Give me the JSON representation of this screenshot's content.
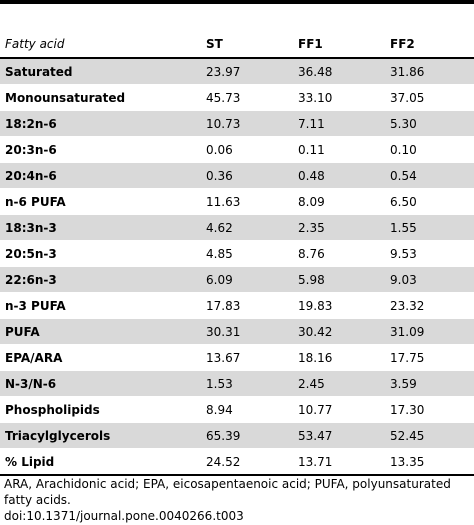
{
  "table": {
    "headers": [
      "Fatty acid",
      "ST",
      "FF1",
      "FF2"
    ],
    "rows": [
      [
        "Saturated",
        "23.97",
        "36.48",
        "31.86"
      ],
      [
        "Monounsaturated",
        "45.73",
        "33.10",
        "37.05"
      ],
      [
        "18:2n-6",
        "10.73",
        "7.11",
        "5.30"
      ],
      [
        "20:3n-6",
        "0.06",
        "0.11",
        "0.10"
      ],
      [
        "20:4n-6",
        "0.36",
        "0.48",
        "0.54"
      ],
      [
        "n-6 PUFA",
        "11.63",
        "8.09",
        "6.50"
      ],
      [
        "18:3n-3",
        "4.62",
        "2.35",
        "1.55"
      ],
      [
        "20:5n-3",
        "4.85",
        "8.76",
        "9.53"
      ],
      [
        "22:6n-3",
        "6.09",
        "5.98",
        "9.03"
      ],
      [
        "n-3 PUFA",
        "17.83",
        "19.83",
        "23.32"
      ],
      [
        "PUFA",
        "30.31",
        "30.42",
        "31.09"
      ],
      [
        "EPA/ARA",
        "13.67",
        "18.16",
        "17.75"
      ],
      [
        "N-3/N-6",
        "1.53",
        "2.45",
        "3.59"
      ],
      [
        "Phospholipids",
        "8.94",
        "10.77",
        "17.30"
      ],
      [
        "Triacylglycerols",
        "65.39",
        "53.47",
        "52.45"
      ],
      [
        "% Lipid",
        "24.52",
        "13.71",
        "13.35"
      ]
    ]
  },
  "footnote": "ARA, Arachidonic acid; EPA, eicosapentaenoic acid; PUFA, polyunsaturated fatty acids.",
  "doi": "doi:10.1371/journal.pone.0040266.t003",
  "colors": {
    "band": "#d9d9d9",
    "rule": "#000000"
  }
}
